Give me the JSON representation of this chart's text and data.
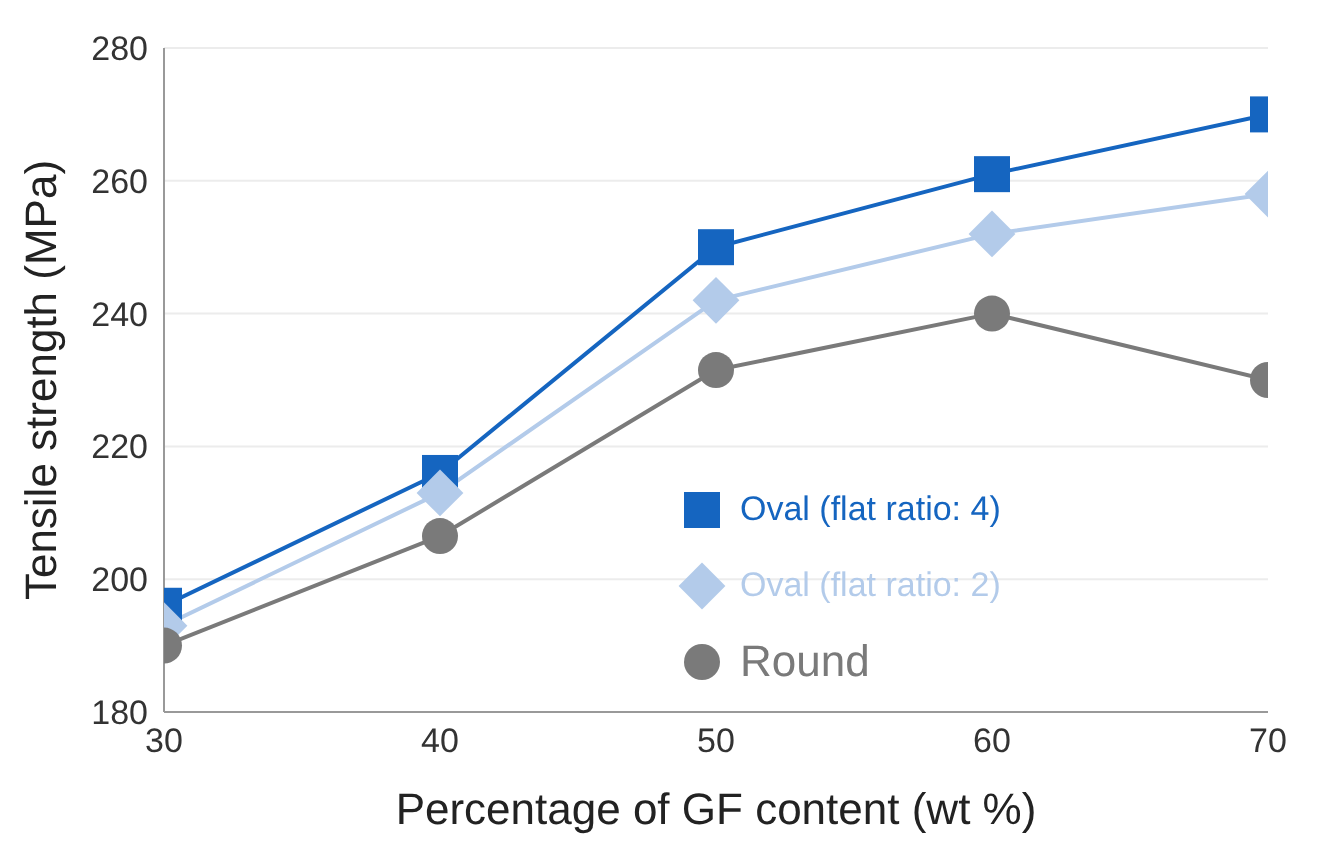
{
  "chart_data": {
    "type": "line",
    "xlabel": "Percentage of GF content (wt %)",
    "ylabel": "Tensile strength (MPa)",
    "x": [
      30,
      40,
      50,
      60,
      70
    ],
    "xlim": [
      30,
      70
    ],
    "xticks": [
      30,
      40,
      50,
      60,
      70
    ],
    "ylim": [
      180,
      280
    ],
    "yticks": [
      180,
      200,
      220,
      240,
      260,
      280
    ],
    "grid": "y",
    "legend": "right",
    "series": [
      {
        "name": "Oval (flat ratio: 4)",
        "color": "#1565c0",
        "marker": "square",
        "values": [
          196,
          216,
          250,
          261,
          270
        ]
      },
      {
        "name": "Oval (flat ratio: 2)",
        "color": "#b3cbea",
        "marker": "diamond",
        "values": [
          193,
          213,
          242,
          252,
          258
        ]
      },
      {
        "name": "Round",
        "color": "#7a7a7a",
        "marker": "circle",
        "values": [
          190,
          206.5,
          231.5,
          240,
          230
        ]
      }
    ]
  }
}
